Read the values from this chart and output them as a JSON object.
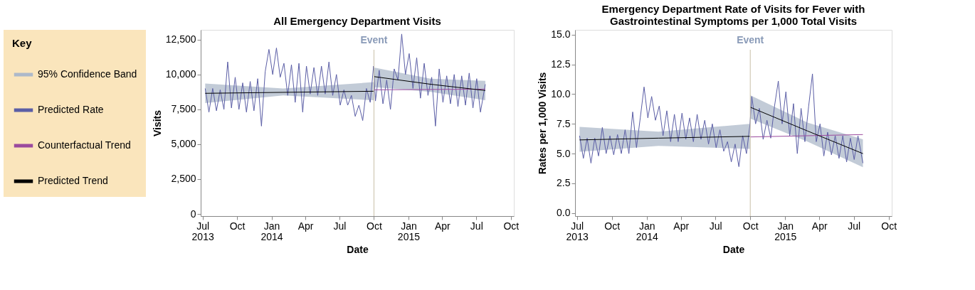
{
  "chart_data": [
    {
      "type": "line",
      "title": "All Emergency Department Visits",
      "xlabel": "Date",
      "ylabel": "Visits",
      "legend": "left",
      "legend_title": "Key",
      "annotations": [
        "95% Confidence Band"
      ],
      "xlim": [
        "2013-06-26",
        "2015-10-09"
      ],
      "ylim": [
        -150,
        13200
      ],
      "xticks": [
        {
          "value": "2013-07-01",
          "label": "Jul 2013"
        },
        {
          "value": "2013-10-01",
          "label": "Oct"
        },
        {
          "value": "2014-01-01",
          "label": "Jan 2014"
        },
        {
          "value": "2014-04-01",
          "label": "Apr"
        },
        {
          "value": "2014-07-01",
          "label": "Jul"
        },
        {
          "value": "2014-10-01",
          "label": "Oct"
        },
        {
          "value": "2015-01-01",
          "label": "Jan 2015"
        },
        {
          "value": "2015-04-01",
          "label": "Apr"
        },
        {
          "value": "2015-07-01",
          "label": "Jul"
        },
        {
          "value": "2015-10-01",
          "label": "Oct"
        }
      ],
      "yticks": [
        {
          "value": 0,
          "label": "0"
        },
        {
          "value": 2500,
          "label": "2,500"
        },
        {
          "value": 5000,
          "label": "5,000"
        },
        {
          "value": 7500,
          "label": "7,500"
        },
        {
          "value": 10000,
          "label": "10,000"
        },
        {
          "value": 12500,
          "label": "12,500"
        }
      ],
      "ref_lines": [
        {
          "axis": "x",
          "value": "2014-10-01",
          "label": "Event",
          "color": "#c8c0a8"
        }
      ],
      "series": [
        {
          "name": "Predicted Rate",
          "color": "#5b5ea6",
          "x": [
            "2013-07-08",
            "2013-07-18",
            "2013-07-28",
            "2013-08-07",
            "2013-08-17",
            "2013-08-27",
            "2013-09-06",
            "2013-09-16",
            "2013-09-26",
            "2013-10-06",
            "2013-10-16",
            "2013-10-26",
            "2013-11-05",
            "2013-11-15",
            "2013-11-25",
            "2013-12-05",
            "2013-12-15",
            "2013-12-25",
            "2014-01-04",
            "2014-01-14",
            "2014-01-24",
            "2014-02-03",
            "2014-02-13",
            "2014-02-23",
            "2014-03-05",
            "2014-03-15",
            "2014-03-25",
            "2014-04-04",
            "2014-04-14",
            "2014-04-24",
            "2014-05-04",
            "2014-05-14",
            "2014-05-24",
            "2014-06-03",
            "2014-06-13",
            "2014-06-23",
            "2014-07-03",
            "2014-07-13",
            "2014-07-23",
            "2014-08-02",
            "2014-08-12",
            "2014-08-22",
            "2014-09-01",
            "2014-09-11",
            "2014-09-21",
            "2014-09-30",
            "2014-10-05",
            "2014-10-15",
            "2014-10-25",
            "2014-11-04",
            "2014-11-14",
            "2014-11-24",
            "2014-12-04",
            "2014-12-14",
            "2014-12-24",
            "2015-01-03",
            "2015-01-13",
            "2015-01-23",
            "2015-02-02",
            "2015-02-12",
            "2015-02-22",
            "2015-03-04",
            "2015-03-14",
            "2015-03-24",
            "2015-04-03",
            "2015-04-13",
            "2015-04-23",
            "2015-05-03",
            "2015-05-13",
            "2015-05-23",
            "2015-06-02",
            "2015-06-12",
            "2015-06-22",
            "2015-07-02",
            "2015-07-12",
            "2015-07-25"
          ],
          "values": [
            9000,
            7300,
            9000,
            7400,
            8900,
            7500,
            10900,
            7600,
            9800,
            7500,
            9400,
            7300,
            9500,
            7400,
            9700,
            6300,
            10200,
            11800,
            10000,
            11900,
            9800,
            10800,
            8500,
            10700,
            8000,
            10800,
            7300,
            10600,
            8600,
            10500,
            8500,
            10600,
            8600,
            10900,
            8500,
            10000,
            7800,
            8900,
            7800,
            8500,
            7000,
            7800,
            6700,
            9000,
            8000,
            10600,
            8100,
            10300,
            7900,
            9600,
            7500,
            10400,
            9600,
            12900,
            10000,
            11500,
            9000,
            11200,
            8300,
            10800,
            8500,
            9800,
            6300,
            10400,
            8000,
            9900,
            7900,
            10000,
            7700,
            9900,
            7800,
            10100,
            7600,
            9700,
            7300,
            9300
          ]
        },
        {
          "name": "Counterfactual Trend",
          "color": "#9b4a9e",
          "x": [
            "2014-10-01",
            "2015-07-25"
          ],
          "values": [
            8900,
            8950
          ]
        },
        {
          "name": "Predicted Trend",
          "color": "#000000",
          "x": [
            "2013-07-08",
            "2014-02-01",
            "2014-09-30",
            "2014-09-30T12:00",
            "2014-10-01",
            "2015-03-01",
            "2015-07-25"
          ],
          "values": [
            8650,
            8720,
            8800,
            null,
            9850,
            9300,
            8850
          ],
          "lower": [
            7950,
            8500,
            8150,
            null,
            9100,
            8750,
            8150
          ],
          "upper": [
            9350,
            9000,
            9450,
            null,
            10500,
            9700,
            9550
          ]
        }
      ]
    },
    {
      "type": "line",
      "title": "Emergency Department Rate of Visits for Fever with Gastrointestinal Symptoms per 1,000 Total Visits",
      "xlabel": "Date",
      "ylabel": "Rates per 1,000 Visits",
      "xlim": [
        "2013-06-26",
        "2015-10-09"
      ],
      "ylim": [
        -0.25,
        15.4
      ],
      "xticks": [
        {
          "value": "2013-07-01",
          "label": "Jul 2013"
        },
        {
          "value": "2013-10-01",
          "label": "Oct"
        },
        {
          "value": "2014-01-01",
          "label": "Jan 2014"
        },
        {
          "value": "2014-04-01",
          "label": "Apr"
        },
        {
          "value": "2014-07-01",
          "label": "Jul"
        },
        {
          "value": "2014-10-01",
          "label": "Oct"
        },
        {
          "value": "2015-01-01",
          "label": "Jan 2015"
        },
        {
          "value": "2015-04-01",
          "label": "Apr"
        },
        {
          "value": "2015-07-01",
          "label": "Jul"
        },
        {
          "value": "2015-10-01",
          "label": "Oct"
        }
      ],
      "yticks": [
        {
          "value": 0,
          "label": "0.0"
        },
        {
          "value": 2.5,
          "label": "2.5"
        },
        {
          "value": 5,
          "label": "5.0"
        },
        {
          "value": 7.5,
          "label": "7.5"
        },
        {
          "value": 10,
          "label": "10.0"
        },
        {
          "value": 12.5,
          "label": "12.5"
        },
        {
          "value": 15,
          "label": "15.0"
        }
      ],
      "ref_lines": [
        {
          "axis": "x",
          "value": "2014-10-01",
          "label": "Event",
          "color": "#c8c0a8"
        }
      ],
      "series": [
        {
          "color": "#5b5ea6",
          "x": [
            "2013-07-08",
            "2013-07-18",
            "2013-07-28",
            "2013-08-07",
            "2013-08-17",
            "2013-08-27",
            "2013-09-06",
            "2013-09-16",
            "2013-09-26",
            "2013-10-06",
            "2013-10-16",
            "2013-10-26",
            "2013-11-05",
            "2013-11-15",
            "2013-11-25",
            "2013-12-05",
            "2013-12-15",
            "2013-12-25",
            "2014-01-04",
            "2014-01-14",
            "2014-01-24",
            "2014-02-03",
            "2014-02-13",
            "2014-02-23",
            "2014-03-05",
            "2014-03-15",
            "2014-03-25",
            "2014-04-04",
            "2014-04-14",
            "2014-04-24",
            "2014-05-04",
            "2014-05-14",
            "2014-05-24",
            "2014-06-03",
            "2014-06-13",
            "2014-06-23",
            "2014-07-03",
            "2014-07-13",
            "2014-07-23",
            "2014-08-02",
            "2014-08-12",
            "2014-08-22",
            "2014-09-01",
            "2014-09-11",
            "2014-09-21",
            "2014-09-30",
            "2014-10-05",
            "2014-10-15",
            "2014-10-25",
            "2014-11-04",
            "2014-11-14",
            "2014-11-24",
            "2014-12-04",
            "2014-12-14",
            "2014-12-24",
            "2015-01-03",
            "2015-01-13",
            "2015-01-23",
            "2015-02-02",
            "2015-02-12",
            "2015-02-22",
            "2015-03-04",
            "2015-03-14",
            "2015-03-24",
            "2015-04-03",
            "2015-04-13",
            "2015-04-23",
            "2015-05-03",
            "2015-05-13",
            "2015-05-23",
            "2015-06-02",
            "2015-06-12",
            "2015-06-22",
            "2015-07-02",
            "2015-07-12",
            "2015-07-25"
          ],
          "values": [
            6.5,
            4.6,
            6.3,
            4.2,
            6.3,
            4.8,
            7.2,
            5.0,
            6.5,
            4.9,
            6.6,
            5.0,
            7.0,
            5.0,
            8.5,
            5.5,
            8.0,
            10.6,
            8.0,
            9.8,
            7.8,
            9.0,
            6.5,
            8.6,
            6.0,
            8.3,
            6.0,
            8.4,
            6.2,
            8.0,
            6.0,
            8.3,
            6.2,
            7.8,
            5.8,
            7.5,
            5.5,
            7.0,
            5.2,
            6.0,
            4.3,
            5.8,
            3.9,
            6.5,
            5.0,
            7.4,
            9.8,
            7.5,
            8.8,
            6.2,
            7.8,
            6.3,
            9.0,
            11.1,
            7.5,
            10.2,
            6.5,
            9.2,
            5.0,
            8.8,
            6.0,
            9.0,
            11.7,
            6.0,
            7.5,
            4.8,
            6.8,
            4.9,
            6.5,
            4.6,
            6.5,
            4.3,
            6.3,
            4.5,
            6.5,
            4.2
          ]
        },
        {
          "color": "#9b4a9e",
          "x": [
            "2014-10-01",
            "2015-07-25"
          ],
          "values": [
            6.4,
            6.6
          ]
        },
        {
          "color": "#000000",
          "x": [
            "2013-07-08",
            "2014-02-01",
            "2014-09-30",
            "2014-09-30T12:00",
            "2014-10-01",
            "2015-03-01",
            "2015-07-25"
          ],
          "values": [
            6.15,
            6.3,
            6.45,
            null,
            8.9,
            6.9,
            5.0
          ],
          "lower": [
            5.15,
            5.65,
            5.4,
            null,
            7.95,
            6.0,
            3.85
          ],
          "upper": [
            7.25,
            6.85,
            7.5,
            null,
            9.9,
            7.6,
            6.2
          ]
        }
      ]
    }
  ]
}
